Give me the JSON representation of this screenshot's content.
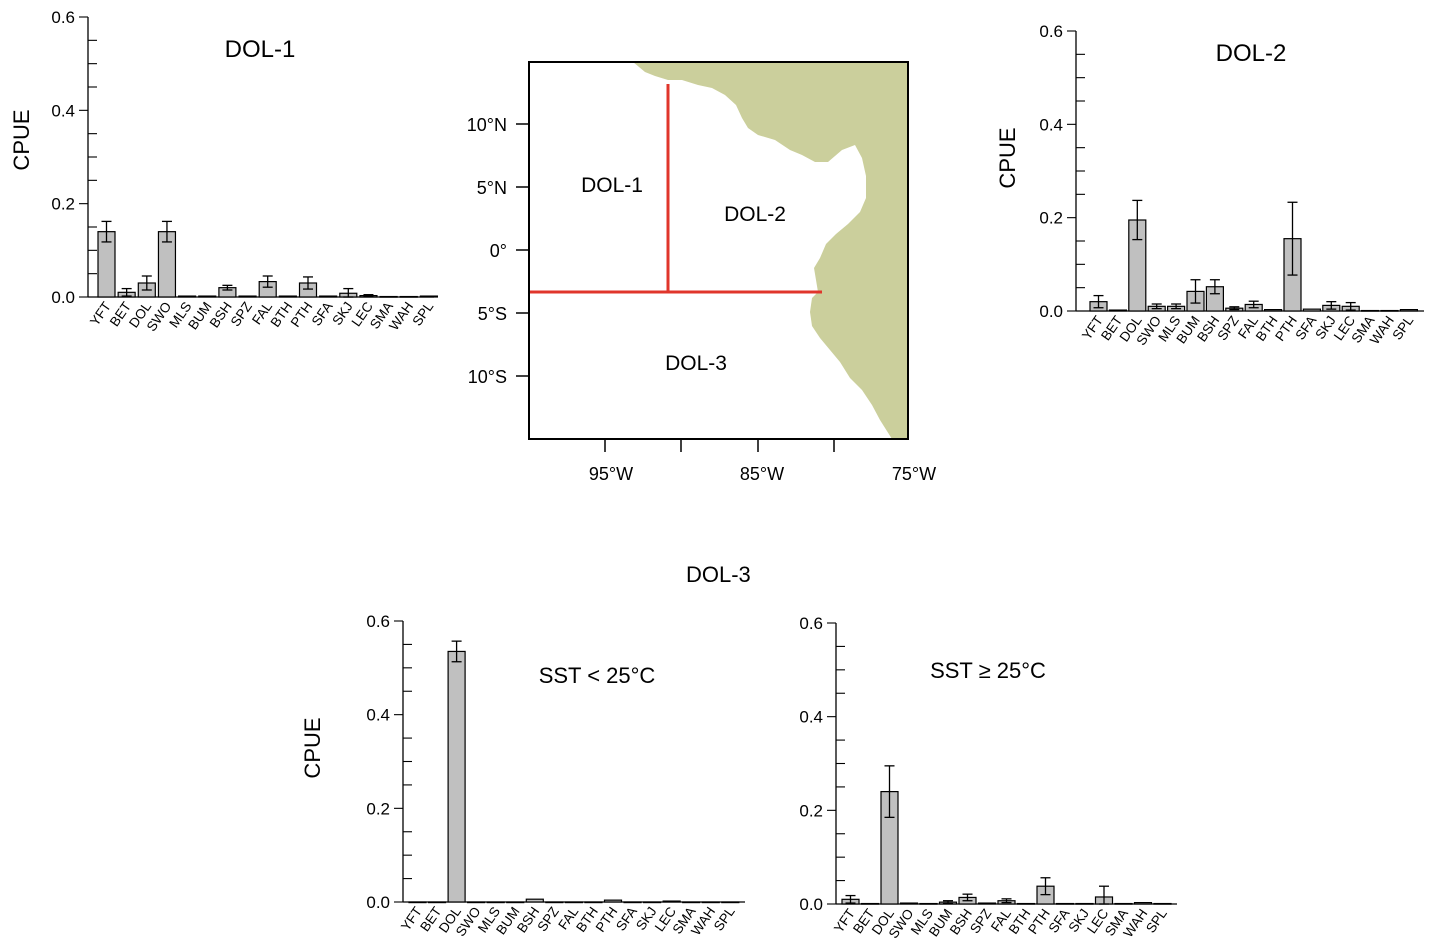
{
  "figure": {
    "group_heading": "DOL-3"
  },
  "map": {
    "lat_ticks": [
      "10°N",
      "5°N",
      "0°",
      "5°S",
      "10°S"
    ],
    "lon_ticks": [
      "95°W",
      "85°W",
      "75°W"
    ],
    "region_labels": [
      "DOL-1",
      "DOL-2",
      "DOL-3"
    ],
    "colors": {
      "land": "#cbcf9c",
      "boundary": "#e0352b",
      "frame": "#000000"
    }
  },
  "chart_data": [
    {
      "type": "bar",
      "title": "DOL-1",
      "ylabel": "CPUE",
      "ylim": [
        0,
        0.6
      ],
      "yticks": [
        "0.0",
        "0.2",
        "0.4",
        "0.6"
      ],
      "categories": [
        "YFT",
        "BET",
        "DOL",
        "SWO",
        "MLS",
        "BUM",
        "BSH",
        "SPZ",
        "FAL",
        "BTH",
        "PTH",
        "SFA",
        "SKJ",
        "LEC",
        "SMA",
        "WAH",
        "SPL"
      ],
      "values": [
        0.14,
        0.01,
        0.03,
        0.14,
        0.002,
        0.002,
        0.02,
        0.002,
        0.033,
        0.002,
        0.03,
        0.002,
        0.008,
        0.003,
        0.001,
        0.001,
        0.002
      ],
      "errors": [
        0.022,
        0.008,
        0.015,
        0.022,
        0.0,
        0.0,
        0.005,
        0.0,
        0.012,
        0.0,
        0.013,
        0.0,
        0.01,
        0.002,
        0.0,
        0.0,
        0.0
      ],
      "bar_color": "#c0c0c0"
    },
    {
      "type": "bar",
      "title": "DOL-2",
      "ylabel": "CPUE",
      "ylim": [
        0,
        0.6
      ],
      "yticks": [
        "0.0",
        "0.2",
        "0.4",
        "0.6"
      ],
      "categories": [
        "YFT",
        "BET",
        "DOL",
        "SWO",
        "MLS",
        "BUM",
        "BSH",
        "SPZ",
        "FAL",
        "BTH",
        "PTH",
        "SFA",
        "SKJ",
        "LEC",
        "SMA",
        "WAH",
        "SPL"
      ],
      "values": [
        0.02,
        0.002,
        0.195,
        0.01,
        0.01,
        0.042,
        0.052,
        0.006,
        0.014,
        0.003,
        0.155,
        0.004,
        0.012,
        0.01,
        0.001,
        0.001,
        0.003
      ],
      "errors": [
        0.013,
        0.0,
        0.042,
        0.005,
        0.005,
        0.025,
        0.015,
        0.003,
        0.007,
        0.0,
        0.078,
        0.0,
        0.008,
        0.008,
        0.0,
        0.0,
        0.0
      ],
      "bar_color": "#c0c0c0"
    },
    {
      "type": "bar",
      "title": "",
      "annotation": "SST < 25°C",
      "ylabel": "CPUE",
      "ylim": [
        0,
        0.6
      ],
      "yticks": [
        "0.0",
        "0.2",
        "0.4",
        "0.6"
      ],
      "categories": [
        "YFT",
        "BET",
        "DOL",
        "SWO",
        "MLS",
        "BUM",
        "BSH",
        "SPZ",
        "FAL",
        "BTH",
        "PTH",
        "SFA",
        "SKJ",
        "LEC",
        "SMA",
        "WAH",
        "SPL"
      ],
      "values": [
        0.0,
        0.0,
        0.535,
        0.0,
        0.0,
        0.0,
        0.006,
        0.0,
        0.0,
        0.0,
        0.004,
        0.0,
        0.0,
        0.002,
        0.0,
        0.0,
        0.0
      ],
      "errors": [
        0.0,
        0.0,
        0.022,
        0.0,
        0.0,
        0.0,
        0.0,
        0.0,
        0.0,
        0.0,
        0.0,
        0.0,
        0.0,
        0.0,
        0.0,
        0.0,
        0.0
      ],
      "bar_color": "#c0c0c0"
    },
    {
      "type": "bar",
      "title": "",
      "annotation": "SST ≥ 25°C",
      "ylabel": "",
      "ylim": [
        0,
        0.6
      ],
      "yticks": [
        "0.0",
        "0.2",
        "0.4",
        "0.6"
      ],
      "categories": [
        "YFT",
        "BET",
        "DOL",
        "SWO",
        "MLS",
        "BUM",
        "BSH",
        "SPZ",
        "FAL",
        "BTH",
        "PTH",
        "SFA",
        "SKJ",
        "LEC",
        "SMA",
        "WAH",
        "SPL"
      ],
      "values": [
        0.01,
        0.001,
        0.24,
        0.002,
        0.001,
        0.004,
        0.014,
        0.002,
        0.007,
        0.001,
        0.038,
        0.001,
        0.001,
        0.015,
        0.001,
        0.003,
        0.001
      ],
      "errors": [
        0.008,
        0.0,
        0.055,
        0.0,
        0.0,
        0.003,
        0.007,
        0.0,
        0.004,
        0.0,
        0.018,
        0.0,
        0.0,
        0.023,
        0.0,
        0.0,
        0.0
      ],
      "bar_color": "#c0c0c0"
    }
  ]
}
